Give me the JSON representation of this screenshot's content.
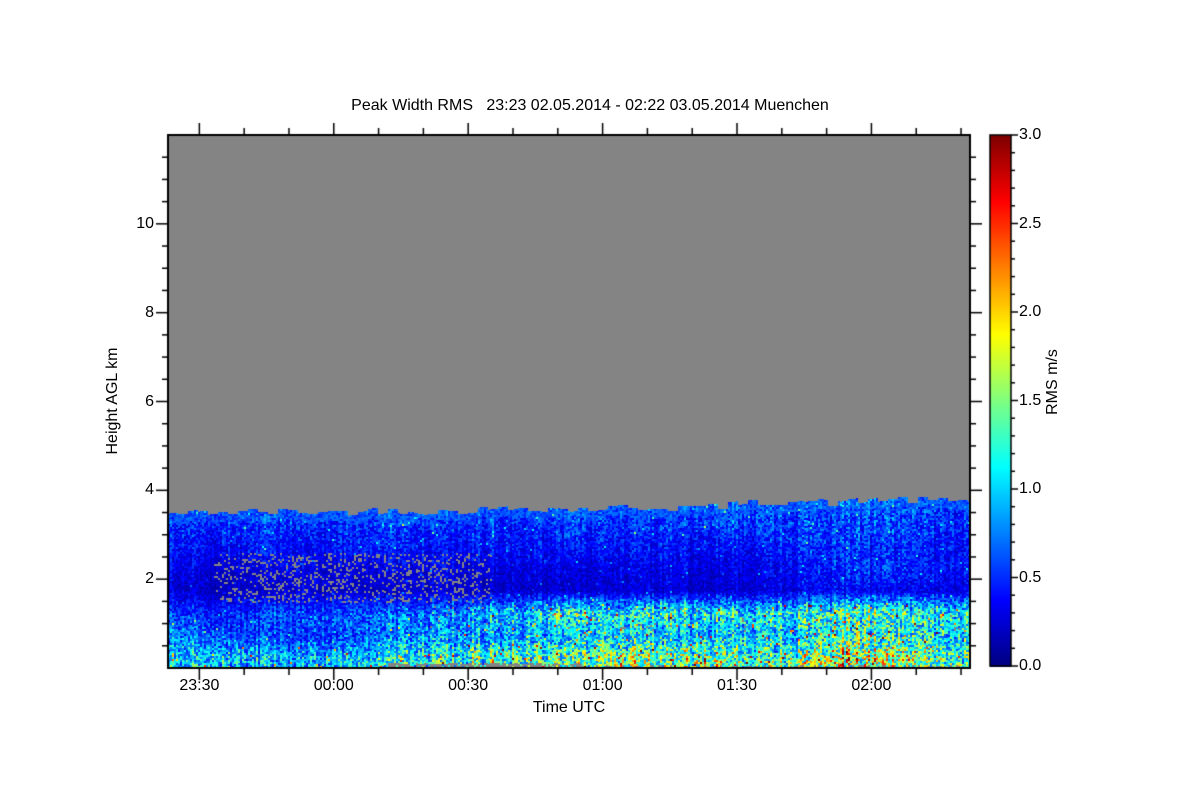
{
  "page": {
    "background": "#ffffff"
  },
  "chart_data": {
    "type": "heatmap",
    "title": "Peak Width RMS   23:23 02.05.2014 - 02:22 03.05.2014 Muenchen",
    "xlabel": "Time UTC",
    "ylabel": "Height AGL km",
    "axis_color": "#000000",
    "no_data_color": "#848484",
    "x_axis": {
      "start_minute": -37,
      "end_minute": 142,
      "start_label": "23:23",
      "end_label": "02:22",
      "minor_step_minutes": 10,
      "major_ticks": [
        {
          "minute": -30,
          "label": "23:30"
        },
        {
          "minute": 0,
          "label": "00:00"
        },
        {
          "minute": 30,
          "label": "00:30"
        },
        {
          "minute": 60,
          "label": "01:00"
        },
        {
          "minute": 90,
          "label": "01:30"
        },
        {
          "minute": 120,
          "label": "02:00"
        }
      ]
    },
    "y_axis": {
      "min_km": 0,
      "max_km": 12,
      "minor_step_km": 0.5,
      "major_ticks": [
        {
          "value": 2,
          "label": "2"
        },
        {
          "value": 4,
          "label": "4"
        },
        {
          "value": 6,
          "label": "6"
        },
        {
          "value": 8,
          "label": "8"
        },
        {
          "value": 10,
          "label": "10"
        }
      ]
    },
    "colorbar": {
      "label": "RMS m/s",
      "min": 0.0,
      "max": 3.0,
      "minor_step": 0.1,
      "colormap": "jet",
      "major_ticks": [
        {
          "value": 0.0,
          "label": "0.0"
        },
        {
          "value": 0.5,
          "label": "0.5"
        },
        {
          "value": 1.0,
          "label": "1.0"
        },
        {
          "value": 1.5,
          "label": "1.5"
        },
        {
          "value": 2.0,
          "label": "2.0"
        },
        {
          "value": 2.5,
          "label": "2.5"
        },
        {
          "value": 3.0,
          "label": "3.0"
        }
      ]
    },
    "grid": {
      "comment": "Coarse RMS (m/s) field read from the image. Columns are 10-min steps from 23:23 to 02:22 UTC (minutes relative to 00:00). Rows are height bin centers in km AGL. Above top_boundary_km there is no data (gray).",
      "columns_minutes": [
        -37,
        -27,
        -17,
        -7,
        3,
        13,
        23,
        33,
        43,
        53,
        63,
        73,
        83,
        93,
        103,
        113,
        123,
        133
      ],
      "heights_km": [
        0.25,
        0.75,
        1.25,
        1.75,
        2.25,
        2.75,
        3.25
      ],
      "values": [
        [
          0.9,
          1.0,
          0.85,
          0.8,
          0.9,
          1.0,
          1.1,
          1.2,
          1.3,
          1.2,
          1.5,
          1.3,
          1.5,
          1.2,
          1.3,
          1.7,
          1.5,
          1.3
        ],
        [
          0.7,
          0.6,
          0.55,
          0.5,
          0.55,
          0.65,
          0.8,
          0.8,
          0.9,
          0.8,
          1.0,
          0.9,
          0.8,
          1.0,
          0.9,
          1.2,
          1.1,
          1.0
        ],
        [
          0.5,
          0.45,
          0.5,
          0.55,
          0.6,
          0.6,
          0.65,
          0.9,
          1.0,
          1.1,
          1.0,
          1.2,
          1.1,
          1.0,
          1.1,
          1.3,
          1.2,
          1.1
        ],
        [
          0.25,
          0.2,
          0.2,
          0.25,
          0.2,
          0.2,
          0.25,
          0.2,
          0.25,
          0.2,
          0.25,
          0.25,
          0.2,
          0.25,
          0.3,
          0.35,
          0.3,
          0.3
        ],
        [
          0.3,
          0.25,
          0.25,
          0.3,
          0.25,
          0.25,
          0.3,
          0.3,
          0.3,
          0.25,
          0.3,
          0.3,
          0.25,
          0.3,
          0.35,
          0.45,
          0.5,
          0.4
        ],
        [
          0.4,
          0.35,
          0.4,
          0.35,
          0.4,
          0.4,
          0.35,
          0.4,
          0.4,
          0.35,
          0.4,
          0.4,
          0.35,
          0.4,
          0.45,
          0.5,
          0.45,
          0.4
        ],
        [
          0.45,
          0.45,
          0.5,
          0.45,
          0.45,
          0.5,
          0.45,
          0.5,
          0.45,
          0.5,
          0.5,
          0.45,
          0.5,
          0.55,
          0.5,
          0.55,
          0.55,
          0.5
        ]
      ],
      "top_boundary_km": [
        3.45,
        3.5,
        3.5,
        3.5,
        3.5,
        3.55,
        3.5,
        3.55,
        3.6,
        3.55,
        3.6,
        3.6,
        3.6,
        3.7,
        3.75,
        3.7,
        3.8,
        3.75
      ],
      "gap_regions": [
        {
          "from_minute": -27,
          "to_minute": 35,
          "height_from_km": 1.5,
          "height_to_km": 2.6,
          "fraction": 0.22
        },
        {
          "from_minute": 12,
          "to_minute": 55,
          "height_from_km": 0.0,
          "height_to_km": 0.12,
          "fraction": 0.75
        },
        {
          "from_minute": 55,
          "to_minute": 140,
          "height_from_km": 0.0,
          "height_to_km": 0.08,
          "fraction": 0.3
        },
        {
          "from_minute": 20,
          "to_minute": 142,
          "height_from_km": 0.85,
          "height_to_km": 1.45,
          "fraction": 0.015
        }
      ]
    }
  }
}
